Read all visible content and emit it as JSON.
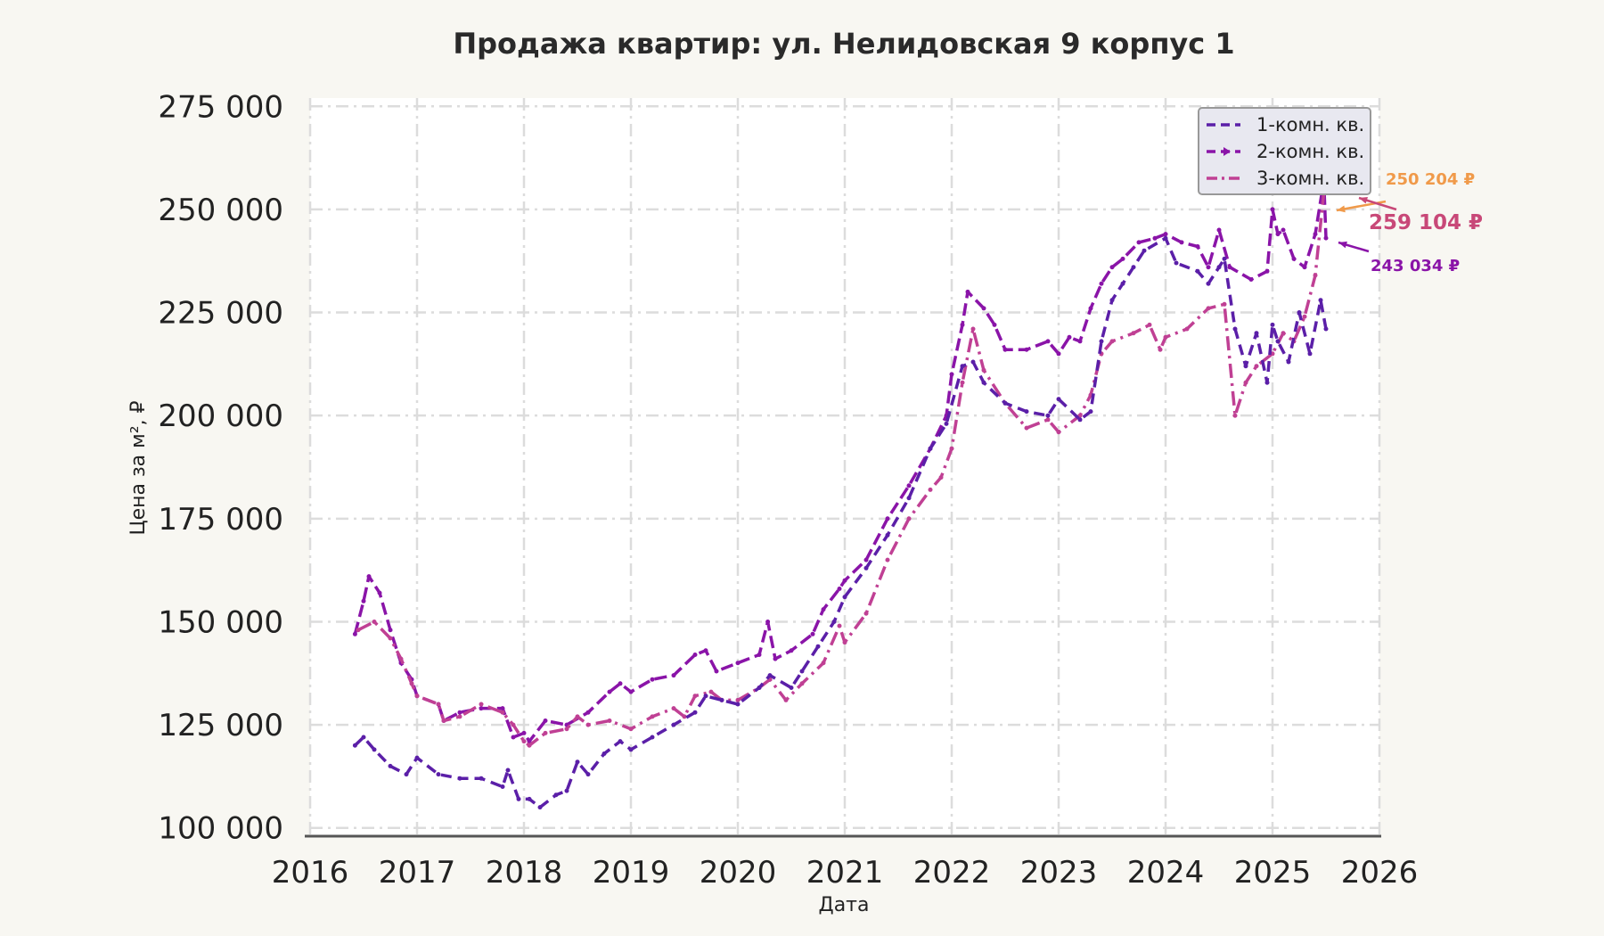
{
  "chart_data": {
    "type": "line",
    "title": "Продажа квартир: ул. Нелидовская 9 корпус 1",
    "xlabel": "Дата",
    "ylabel": "Цена за м², ₽",
    "xlim": [
      2016,
      2026
    ],
    "ylim": [
      98000,
      277000
    ],
    "x_ticks": [
      "2016",
      "2017",
      "2018",
      "2019",
      "2020",
      "2021",
      "2022",
      "2023",
      "2024",
      "2025",
      "2026"
    ],
    "y_ticks": [
      "100 000",
      "125 000",
      "150 000",
      "175 000",
      "200 000",
      "225 000",
      "250 000",
      "275 000"
    ],
    "grid": true,
    "legend_position": "top-right",
    "series": [
      {
        "name": "1-комн. кв.",
        "color": "#5b1fa8",
        "dash": "dashed",
        "x": [
          2016.42,
          2016.5,
          2016.6,
          2016.75,
          2016.9,
          2017.0,
          2017.2,
          2017.4,
          2017.6,
          2017.8,
          2017.85,
          2017.95,
          2018.05,
          2018.15,
          2018.3,
          2018.4,
          2018.5,
          2018.6,
          2018.75,
          2018.9,
          2019.0,
          2019.2,
          2019.4,
          2019.6,
          2019.7,
          2019.85,
          2020.0,
          2020.2,
          2020.3,
          2020.5,
          2020.6,
          2020.75,
          2020.9,
          2021.0,
          2021.2,
          2021.4,
          2021.6,
          2021.8,
          2021.95,
          2022.1,
          2022.2,
          2022.3,
          2022.5,
          2022.7,
          2022.9,
          2023.0,
          2023.2,
          2023.3,
          2023.4,
          2023.5,
          2023.6,
          2023.7,
          2023.8,
          2024.0,
          2024.1,
          2024.3,
          2024.4,
          2024.5,
          2024.55,
          2024.65,
          2024.75,
          2024.85,
          2024.95,
          2025.0,
          2025.05,
          2025.15,
          2025.25,
          2025.35,
          2025.45,
          2025.5
        ],
        "y": [
          120000,
          122000,
          119000,
          115000,
          113000,
          117000,
          113000,
          112000,
          112000,
          110000,
          114000,
          107000,
          107000,
          105000,
          108000,
          109000,
          116000,
          113000,
          118000,
          121000,
          119000,
          122000,
          125000,
          128000,
          132000,
          131000,
          130000,
          134000,
          137000,
          134000,
          138000,
          144000,
          150000,
          156000,
          163000,
          171000,
          180000,
          192000,
          198000,
          212000,
          213000,
          208000,
          203000,
          201000,
          200000,
          204000,
          199000,
          201000,
          218000,
          228000,
          232000,
          236000,
          240000,
          243000,
          237000,
          235000,
          232000,
          236000,
          238000,
          221000,
          212000,
          220000,
          208000,
          222000,
          218000,
          213000,
          225000,
          215000,
          228000,
          221000
        ]
      },
      {
        "name": "2-комн. кв.",
        "color": "#8a14a8",
        "dash": "dash-arrow",
        "x": [
          2016.42,
          2016.5,
          2016.55,
          2016.65,
          2016.75,
          2016.85,
          2016.95,
          2017.0,
          2017.2,
          2017.25,
          2017.4,
          2017.6,
          2017.8,
          2017.9,
          2018.0,
          2018.05,
          2018.2,
          2018.4,
          2018.6,
          2018.8,
          2018.9,
          2019.0,
          2019.2,
          2019.4,
          2019.6,
          2019.7,
          2019.8,
          2020.0,
          2020.2,
          2020.28,
          2020.35,
          2020.5,
          2020.7,
          2020.8,
          2020.95,
          2021.0,
          2021.2,
          2021.4,
          2021.6,
          2021.8,
          2021.95,
          2022.0,
          2022.1,
          2022.15,
          2022.3,
          2022.4,
          2022.5,
          2022.7,
          2022.9,
          2023.0,
          2023.1,
          2023.2,
          2023.3,
          2023.4,
          2023.5,
          2023.6,
          2023.75,
          2023.9,
          2024.0,
          2024.15,
          2024.3,
          2024.4,
          2024.5,
          2024.6,
          2024.8,
          2024.95,
          2025.0,
          2025.05,
          2025.1,
          2025.2,
          2025.3,
          2025.4,
          2025.48,
          2025.5
        ],
        "y": [
          147000,
          155000,
          161000,
          157000,
          148000,
          140000,
          136000,
          132000,
          130000,
          126000,
          128000,
          129000,
          129000,
          122000,
          123000,
          121000,
          126000,
          125000,
          128000,
          133000,
          135000,
          133000,
          136000,
          137000,
          142000,
          143000,
          138000,
          140000,
          142000,
          150000,
          141000,
          143000,
          147000,
          153000,
          158000,
          160000,
          165000,
          175000,
          183000,
          192000,
          200000,
          210000,
          222000,
          230000,
          226000,
          222000,
          216000,
          216000,
          218000,
          215000,
          219000,
          218000,
          226000,
          232000,
          236000,
          238000,
          242000,
          243000,
          244000,
          242000,
          241000,
          236000,
          245000,
          236000,
          233000,
          235000,
          250000,
          244000,
          245000,
          238000,
          236000,
          244000,
          257000,
          243034
        ]
      },
      {
        "name": "3-комн. кв.",
        "color": "#c04094",
        "dash": "dash-dot",
        "x": [
          2016.45,
          2016.6,
          2016.75,
          2016.85,
          2016.95,
          2017.0,
          2017.2,
          2017.25,
          2017.4,
          2017.6,
          2017.8,
          2017.9,
          2018.0,
          2018.05,
          2018.2,
          2018.4,
          2018.5,
          2018.6,
          2018.8,
          2019.0,
          2019.2,
          2019.4,
          2019.5,
          2019.6,
          2019.75,
          2019.85,
          2020.0,
          2020.2,
          2020.3,
          2020.45,
          2020.6,
          2020.8,
          2020.95,
          2021.0,
          2021.2,
          2021.4,
          2021.6,
          2021.8,
          2021.9,
          2022.0,
          2022.1,
          2022.2,
          2022.3,
          2022.5,
          2022.7,
          2022.9,
          2023.0,
          2023.2,
          2023.3,
          2023.4,
          2023.5,
          2023.7,
          2023.85,
          2023.95,
          2024.0,
          2024.2,
          2024.4,
          2024.55,
          2024.65,
          2024.75,
          2024.85,
          2025.0,
          2025.1,
          2025.2,
          2025.3,
          2025.4,
          2025.5
        ],
        "y": [
          148000,
          150000,
          146000,
          141000,
          135000,
          132000,
          130000,
          126000,
          127000,
          130000,
          128000,
          125000,
          121000,
          120000,
          123000,
          124000,
          127000,
          125000,
          126000,
          124000,
          127000,
          129000,
          127000,
          132000,
          133000,
          131000,
          131000,
          134000,
          136000,
          131000,
          135000,
          140000,
          149000,
          145000,
          152000,
          165000,
          175000,
          182000,
          185000,
          192000,
          208000,
          221000,
          211000,
          203000,
          197000,
          199000,
          196000,
          200000,
          205000,
          215000,
          218000,
          220000,
          222000,
          216000,
          219000,
          221000,
          226000,
          227000,
          200000,
          208000,
          212000,
          215000,
          220000,
          218000,
          224000,
          234000,
          259104
        ]
      }
    ],
    "annotations": [
      {
        "text": "250 204 ₽",
        "color": "#f09a4a",
        "x": 2025.5,
        "y": 250204
      },
      {
        "text": "259 104 ₽",
        "color": "#c84878",
        "x": 2025.5,
        "y": 259104
      },
      {
        "text": "243 034 ₽",
        "color": "#8a14a8",
        "x": 2025.5,
        "y": 243034
      }
    ]
  }
}
